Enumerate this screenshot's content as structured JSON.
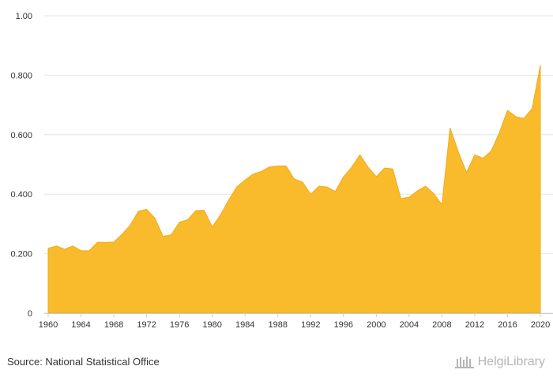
{
  "chart_data": {
    "type": "area",
    "x": [
      1960,
      1961,
      1962,
      1963,
      1964,
      1965,
      1966,
      1967,
      1968,
      1969,
      1970,
      1971,
      1972,
      1973,
      1974,
      1975,
      1976,
      1977,
      1978,
      1979,
      1980,
      1981,
      1982,
      1983,
      1984,
      1985,
      1986,
      1987,
      1988,
      1989,
      1990,
      1991,
      1992,
      1993,
      1994,
      1995,
      1996,
      1997,
      1998,
      1999,
      2000,
      2001,
      2002,
      2003,
      2004,
      2005,
      2006,
      2007,
      2008,
      2009,
      2010,
      2011,
      2012,
      2013,
      2014,
      2015,
      2016,
      2017,
      2018,
      2019,
      2020
    ],
    "series": [
      {
        "values": [
          0.218,
          0.226,
          0.215,
          0.226,
          0.21,
          0.21,
          0.238,
          0.238,
          0.239,
          0.265,
          0.296,
          0.343,
          0.349,
          0.32,
          0.258,
          0.264,
          0.306,
          0.314,
          0.345,
          0.346,
          0.29,
          0.33,
          0.38,
          0.425,
          0.448,
          0.468,
          0.477,
          0.492,
          0.495,
          0.495,
          0.451,
          0.441,
          0.4,
          0.427,
          0.424,
          0.409,
          0.458,
          0.491,
          0.532,
          0.491,
          0.459,
          0.488,
          0.485,
          0.385,
          0.39,
          0.411,
          0.427,
          0.402,
          0.365,
          0.623,
          0.542,
          0.473,
          0.532,
          0.521,
          0.545,
          0.607,
          0.682,
          0.661,
          0.655,
          0.688,
          0.834
        ],
        "color": "#f7b72a"
      }
    ],
    "xlim": [
      1960,
      2020
    ],
    "ylim": [
      0,
      1.0
    ],
    "x_ticks": [
      "1960",
      "1964",
      "1968",
      "1972",
      "1976",
      "1980",
      "1984",
      "1988",
      "1992",
      "1996",
      "2000",
      "2004",
      "2008",
      "2012",
      "2016",
      "2020"
    ],
    "y_ticks": [
      "0",
      "0.200",
      "0.400",
      "0.600",
      "0.800",
      "1.00"
    ],
    "grid": true,
    "legend": "none"
  },
  "footer": {
    "source": "Source: National Statistical Office",
    "brand": "HelgiLibrary"
  },
  "colors": {
    "area_fill": "#f9bb2b",
    "area_stroke": "#f0aa1a",
    "grid": "#e6e6e6",
    "brand": "#b5b5b5"
  }
}
